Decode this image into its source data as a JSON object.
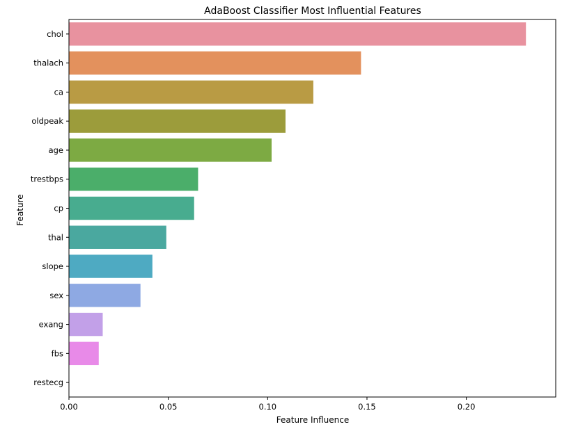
{
  "chart_data": {
    "type": "bar",
    "orientation": "horizontal",
    "title": "AdaBoost Classifier Most Influential Features",
    "xlabel": "Feature Influence",
    "ylabel": "Feature",
    "xlim": [
      0,
      0.245
    ],
    "x_ticks": [
      0.0,
      0.05,
      0.1,
      0.15,
      0.2
    ],
    "x_tick_labels": [
      "0.00",
      "0.05",
      "0.10",
      "0.15",
      "0.20"
    ],
    "grid": false,
    "categories": [
      "chol",
      "thalach",
      "ca",
      "oldpeak",
      "age",
      "trestbps",
      "cp",
      "thal",
      "slope",
      "sex",
      "exang",
      "fbs",
      "restecg"
    ],
    "values": [
      0.23,
      0.147,
      0.123,
      0.109,
      0.102,
      0.065,
      0.063,
      0.049,
      0.042,
      0.036,
      0.017,
      0.015,
      0.0
    ],
    "colors": [
      "#e8929f",
      "#e3915d",
      "#b99b44",
      "#9c9c3b",
      "#7daa43",
      "#4bae6a",
      "#48ac8f",
      "#4aa89f",
      "#4eaac2",
      "#8ea9e3",
      "#c2a0e8",
      "#e88ae8",
      "#f08fc8"
    ]
  }
}
